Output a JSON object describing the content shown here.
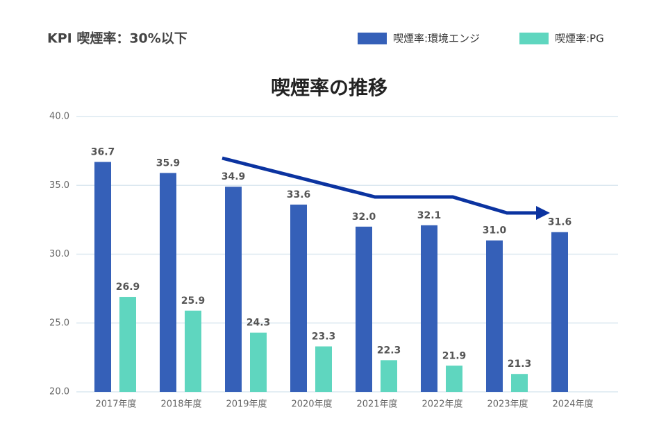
{
  "chart_data": {
    "type": "bar",
    "header": "KPI 喫煙率：30%以下",
    "title": "喫煙率の推移",
    "categories": [
      "2017年度",
      "2018年度",
      "2019年度",
      "2020年度",
      "2021年度",
      "2022年度",
      "2023年度",
      "2024年度"
    ],
    "series": [
      {
        "name": "喫煙率:環境エンジ",
        "color": "#3560b8",
        "values": [
          36.7,
          35.9,
          34.9,
          33.6,
          32.0,
          32.1,
          31.0,
          31.6
        ],
        "value_labels": [
          "36.7",
          "35.9",
          "34.9",
          "33.6",
          "32.0",
          "32.1",
          "31.0",
          "31.6"
        ]
      },
      {
        "name": "喫煙率:PG",
        "color": "#5fd6bf",
        "values": [
          26.9,
          25.9,
          24.3,
          23.3,
          22.3,
          21.9,
          21.3,
          null
        ]
      }
    ],
    "ylim": [
      20,
      40
    ],
    "yticks": [
      {
        "value": 20,
        "label": "20.0"
      },
      {
        "value": 25,
        "label": "25.0"
      },
      {
        "value": 30,
        "label": "30.0"
      },
      {
        "value": 35,
        "label": "35.0"
      },
      {
        "value": 40,
        "label": "40.0"
      }
    ],
    "grid": true
  }
}
